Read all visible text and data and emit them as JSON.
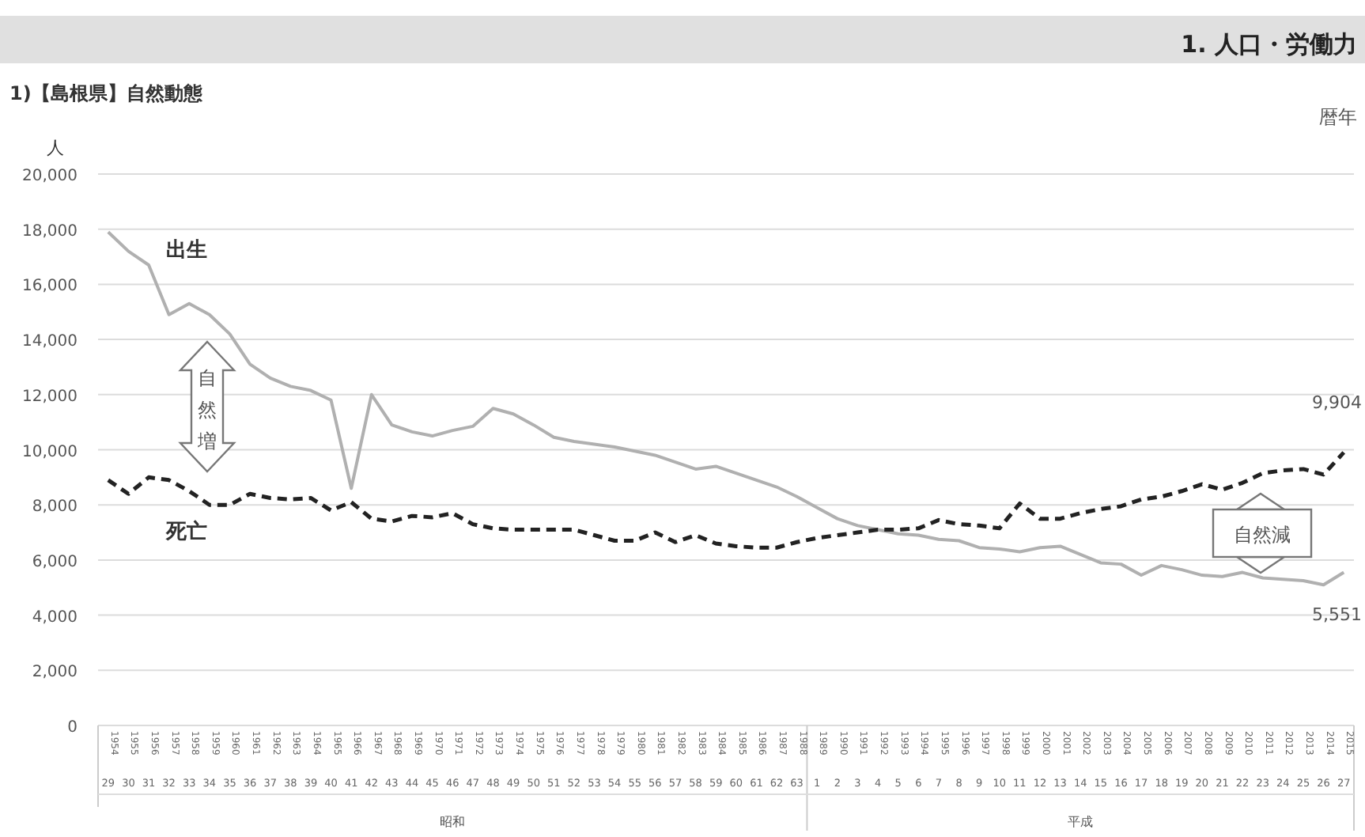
{
  "chart_data": {
    "type": "line",
    "title": "1)【島根県】自然動態",
    "subtitle": "1. 人口・労働力",
    "ylabel": "人",
    "categories": [
      "1954\n29",
      "1955\n30",
      "1956\n31",
      "1957\n32",
      "1958\n33",
      "1959\n34",
      "1960\n35",
      "1961\n36",
      "1962\n37",
      "1963\n38",
      "1964\n39",
      "1965\n40",
      "1966\n41",
      "1967\n42",
      "1968\n43",
      "1969\n44",
      "1970\n45",
      "1971\n46",
      "1972\n47",
      "1973\n48",
      "1974\n49",
      "1975\n50",
      "1976\n51",
      "1977\n52",
      "1978\n53",
      "1979\n54",
      "1980\n55",
      "1981\n56",
      "1982\n57",
      "1983\n58",
      "1984\n59",
      "1985\n60",
      "1986\n61",
      "1987\n62",
      "1988\n63",
      "1989\n1",
      "1990\n2",
      "1991\n3",
      "1992\n4",
      "1993\n5",
      "1994\n6",
      "1995\n7",
      "1996\n8",
      "1997\n9",
      "1998\n10",
      "1999\n11",
      "2000\n12",
      "2001\n13",
      "2002\n14",
      "2003\n15",
      "2004\n16",
      "2005\n17",
      "2006\n18",
      "2007\n19",
      "2008\n20",
      "2009\n21",
      "2010\n22",
      "2011\n23",
      "2012\n24",
      "2013\n25",
      "2014\n26",
      "2015\n27"
    ],
    "series": [
      {
        "name": "出生",
        "color": "#b0b0b0",
        "line_style": "solid",
        "values": [
          17900,
          17200,
          16700,
          14900,
          15300,
          14900,
          14200,
          13100,
          12600,
          12300,
          12150,
          11800,
          8600,
          12000,
          10900,
          10650,
          10500,
          10700,
          10850,
          11500,
          11300,
          10900,
          10450,
          10300,
          10200,
          10100,
          9950,
          9800,
          9550,
          9300,
          9400,
          9150,
          8900,
          8650,
          8300,
          7900,
          7500,
          7250,
          7100,
          6950,
          6900,
          6750,
          6700,
          6450,
          6400,
          6300,
          6450,
          6500,
          6200,
          5900,
          5850,
          5450,
          5800,
          5650,
          5450,
          5400,
          5550,
          5350,
          5300,
          5250,
          5100,
          5551
        ],
        "value_labels": [
          null,
          null,
          null,
          null,
          null,
          null,
          null,
          null,
          null,
          null,
          null,
          null,
          null,
          null,
          null,
          null,
          null,
          null,
          null,
          null,
          null,
          null,
          null,
          null,
          null,
          null,
          null,
          null,
          null,
          null,
          null,
          null,
          null,
          null,
          null,
          null,
          null,
          null,
          null,
          null,
          null,
          null,
          null,
          null,
          null,
          null,
          null,
          null,
          null,
          null,
          null,
          null,
          null,
          null,
          null,
          null,
          null,
          null,
          null,
          null,
          null,
          "5,551"
        ]
      },
      {
        "name": "死亡",
        "color": "#222222",
        "line_style": "dashed",
        "values": [
          8900,
          8400,
          9000,
          8900,
          8500,
          8000,
          8000,
          8400,
          8250,
          8200,
          8250,
          7800,
          8100,
          7500,
          7400,
          7600,
          7550,
          7700,
          7300,
          7150,
          7100,
          7100,
          7100,
          7100,
          6900,
          6700,
          6700,
          7000,
          6650,
          6900,
          6600,
          6500,
          6450,
          6450,
          6650,
          6800,
          6900,
          7000,
          7100,
          7100,
          7150,
          7450,
          7300,
          7250,
          7150,
          8050,
          7500,
          7500,
          7700,
          7850,
          7950,
          8200,
          8300,
          8500,
          8750,
          8550,
          8800,
          9150,
          9250,
          9300,
          9100,
          9904
        ],
        "value_labels": [
          null,
          null,
          null,
          null,
          null,
          null,
          null,
          null,
          null,
          null,
          null,
          null,
          null,
          null,
          null,
          null,
          null,
          null,
          null,
          null,
          null,
          null,
          null,
          null,
          null,
          null,
          null,
          null,
          null,
          null,
          null,
          null,
          null,
          null,
          null,
          null,
          null,
          null,
          null,
          null,
          null,
          null,
          null,
          null,
          null,
          null,
          null,
          null,
          null,
          null,
          null,
          null,
          null,
          null,
          null,
          null,
          null,
          null,
          null,
          null,
          null,
          "9,904"
        ]
      }
    ],
    "ylim": [
      0,
      20000
    ],
    "yticks": [
      {
        "value": 0,
        "label": "0"
      },
      {
        "value": 2000,
        "label": "2,000"
      },
      {
        "value": 4000,
        "label": "4,000"
      },
      {
        "value": 6000,
        "label": "6,000"
      },
      {
        "value": 8000,
        "label": "8,000"
      },
      {
        "value": 10000,
        "label": "10,000"
      },
      {
        "value": 12000,
        "label": "12,000"
      },
      {
        "value": 14000,
        "label": "14,000"
      },
      {
        "value": 16000,
        "label": "16,000"
      },
      {
        "value": 18000,
        "label": "18,000"
      },
      {
        "value": 20000,
        "label": "20,000"
      }
    ],
    "grid": "y",
    "marker": "none",
    "annotations": [
      "暦年",
      "自然増",
      "自然減",
      "昭和",
      "平成"
    ]
  }
}
